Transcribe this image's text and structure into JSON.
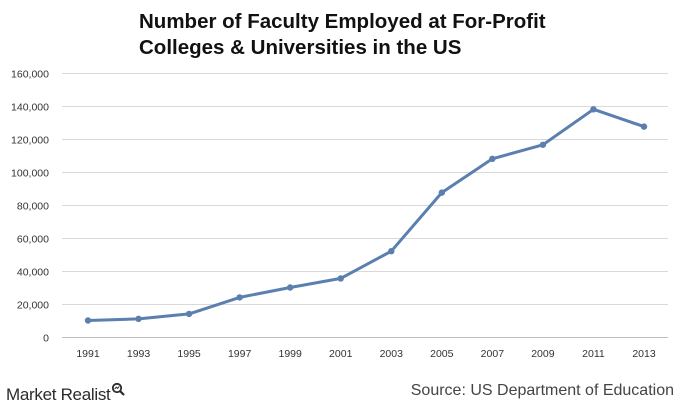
{
  "chart_data": {
    "type": "line",
    "title_lines": [
      "Number of Faculty Employed at For-Profit",
      "Colleges & Universities in the US"
    ],
    "xlabel": "",
    "ylabel": "",
    "categories": [
      "1991",
      "1993",
      "1995",
      "1997",
      "1999",
      "2001",
      "2003",
      "2005",
      "2007",
      "2009",
      "2011",
      "2013"
    ],
    "series": [
      {
        "values": [
          10000,
          11000,
          14000,
          24000,
          30000,
          35500,
          52000,
          87500,
          108000,
          116500,
          138000,
          127500
        ]
      }
    ],
    "ylim": [
      0,
      160000
    ],
    "yticks": [
      0,
      20000,
      40000,
      60000,
      80000,
      100000,
      120000,
      140000,
      160000
    ],
    "ytick_labels": [
      "0",
      "20,000",
      "40,000",
      "60,000",
      "80,000",
      "100,000",
      "120,000",
      "140,000",
      "160,000"
    ],
    "grid": true,
    "legend": "none",
    "colors": {
      "line": "#5b7fae",
      "grid": "#d9d9d9",
      "axis": "#bfbfbf"
    }
  },
  "footer": {
    "brand": "Market Realist",
    "source": "Source: US Department of Education"
  }
}
